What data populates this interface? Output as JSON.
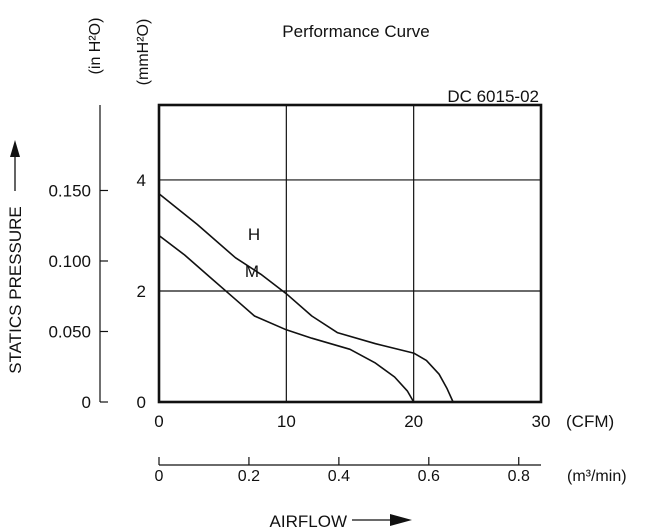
{
  "chart_data": {
    "type": "line",
    "title": "Performance Curve",
    "model_label": "DC 6015-02",
    "xlabel": "AIRFLOW",
    "ylabel": "STATICS PRESSURE",
    "x_unit_primary": "(CFM)",
    "x_unit_secondary": "(m³/min)",
    "y_unit_left": "(in H²O)",
    "y_unit_right": "(mmH²O)",
    "xlim": [
      0,
      30
    ],
    "ylim": [
      0,
      5.35
    ],
    "x_ticks": [
      "0",
      "10",
      "20",
      "30"
    ],
    "x_ticks_values": [
      0,
      10,
      20,
      30
    ],
    "x2_ticks": [
      "0",
      "0.2",
      "0.4",
      "0.6",
      "0.8"
    ],
    "x2_ticks_values": [
      0,
      0.2,
      0.4,
      0.6,
      0.8
    ],
    "y_ticks_mm": [
      "0",
      "2",
      "4"
    ],
    "y_ticks_mm_values": [
      0,
      2,
      4
    ],
    "y_ticks_in": [
      "0",
      "0.050",
      "0.100",
      "0.150"
    ],
    "y_ticks_in_values": [
      0,
      0.05,
      0.1,
      0.15
    ],
    "grid": true,
    "series": [
      {
        "name": "H",
        "x": [
          0,
          3,
          6,
          8,
          10,
          12,
          14,
          17,
          20,
          21,
          22,
          22.6,
          23.1
        ],
        "y": [
          3.75,
          3.2,
          2.6,
          2.3,
          1.95,
          1.55,
          1.25,
          1.05,
          0.88,
          0.75,
          0.5,
          0.25,
          0
        ]
      },
      {
        "name": "M",
        "x": [
          0,
          2,
          4,
          6,
          7.5,
          10,
          12,
          15,
          17,
          18.5,
          19.5,
          20
        ],
        "y": [
          3.0,
          2.65,
          2.25,
          1.85,
          1.55,
          1.3,
          1.15,
          0.95,
          0.7,
          0.45,
          0.2,
          0
        ]
      }
    ]
  }
}
